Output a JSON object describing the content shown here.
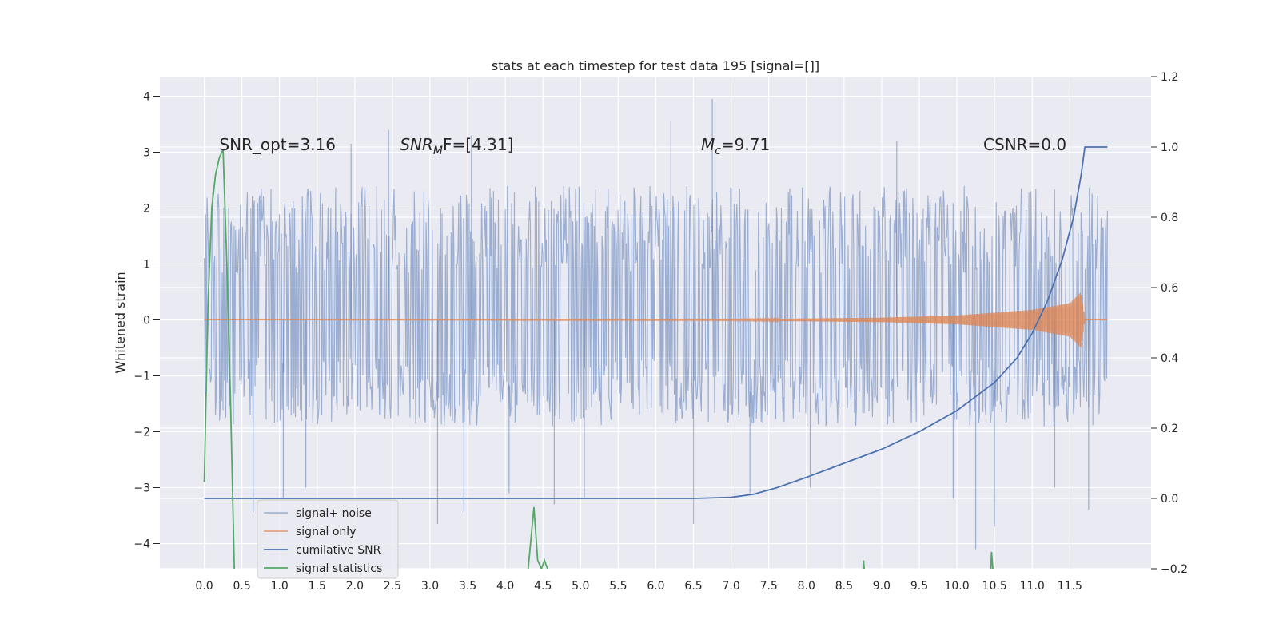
{
  "chart_data": {
    "type": "line",
    "title": "stats at each timestep for test data 195 [signal=[]]",
    "ylabel": "Whitened strain",
    "xlabel": "",
    "xlim": [
      -0.59,
      12.58
    ],
    "ylim": [
      -4.45,
      4.35
    ],
    "ylim_right": [
      -0.2,
      1.2
    ],
    "x_ticks": [
      0.0,
      0.5,
      1.0,
      1.5,
      2.0,
      2.5,
      3.0,
      3.5,
      4.0,
      4.5,
      5.0,
      5.5,
      6.0,
      6.5,
      7.0,
      7.5,
      8.0,
      8.5,
      9.0,
      9.5,
      10.0,
      10.5,
      11.0,
      11.5
    ],
    "x_tick_labels": [
      "0.0",
      "0.5",
      "1.0",
      "1.5",
      "2.0",
      "2.5",
      "3.0",
      "3.5",
      "4.0",
      "4.5",
      "5.0",
      "5.5",
      "6.0",
      "6.5",
      "7.0",
      "7.5",
      "8.0",
      "8.5",
      "9.0",
      "9.5",
      "10.0",
      "10.5",
      "11.0",
      "11.5"
    ],
    "y_ticks": [
      -4,
      -3,
      -2,
      -1,
      0,
      1,
      2,
      3,
      4
    ],
    "y_tick_labels": [
      "−4",
      "−3",
      "−2",
      "−1",
      "0",
      "1",
      "2",
      "3",
      "4"
    ],
    "y_right_ticks": [
      -0.2,
      0.0,
      0.2,
      0.4,
      0.6,
      0.8,
      1.0,
      1.2
    ],
    "y_right_tick_labels": [
      "−0.2",
      "0.0",
      "0.2",
      "0.4",
      "0.6",
      "0.8",
      "1.0",
      "1.2"
    ],
    "grid": true,
    "legend_position": "lower-left",
    "annotations": [
      {
        "text": "SNR_opt=3.16",
        "x": 0.2,
        "y": 3.15
      },
      {
        "text_main": "SNR",
        "text_sub": "M",
        "text_rest": "F=[4.31]",
        "x": 2.6,
        "y": 3.15
      },
      {
        "text_main": "M",
        "text_sub": "c",
        "text_rest": "=9.71",
        "x": 6.6,
        "y": 3.15
      },
      {
        "text": "CSNR=0.0",
        "x": 10.35,
        "y": 3.15
      }
    ],
    "series": [
      {
        "name": "signal+ noise",
        "color": "#4c72b0",
        "opacity": 0.5,
        "axis": "left",
        "x_range": [
          0.0,
          12.0
        ],
        "envelope_typical": [
          -1.9,
          2.4
        ],
        "spikes": [
          {
            "x": 0.65,
            "y": -3.45
          },
          {
            "x": 1.05,
            "y": -3.2
          },
          {
            "x": 1.35,
            "y": -3.0
          },
          {
            "x": 1.95,
            "y": 3.15
          },
          {
            "x": 2.45,
            "y": 3.4
          },
          {
            "x": 3.1,
            "y": -3.65
          },
          {
            "x": 3.45,
            "y": -3.45
          },
          {
            "x": 3.55,
            "y": 3.3
          },
          {
            "x": 4.05,
            "y": -3.1
          },
          {
            "x": 4.65,
            "y": -3.3
          },
          {
            "x": 5.05,
            "y": -3.2
          },
          {
            "x": 6.2,
            "y": 3.55
          },
          {
            "x": 6.5,
            "y": -3.65
          },
          {
            "x": 6.75,
            "y": 3.95
          },
          {
            "x": 7.25,
            "y": -3.1
          },
          {
            "x": 8.05,
            "y": -3.0
          },
          {
            "x": 9.2,
            "y": 3.2
          },
          {
            "x": 9.95,
            "y": -3.2
          },
          {
            "x": 10.25,
            "y": -4.1
          },
          {
            "x": 10.5,
            "y": -3.7
          },
          {
            "x": 11.3,
            "y": -3.0
          },
          {
            "x": 11.75,
            "y": -3.4
          }
        ]
      },
      {
        "name": "signal only",
        "color": "#dd8452",
        "axis": "left",
        "x_range": [
          0.0,
          12.0
        ],
        "amplitude_envelope": [
          [
            0.0,
            0.0
          ],
          [
            7.0,
            0.01
          ],
          [
            9.0,
            0.04
          ],
          [
            10.0,
            0.08
          ],
          [
            11.0,
            0.18
          ],
          [
            11.5,
            0.3
          ],
          [
            11.65,
            0.5
          ],
          [
            11.7,
            0.0
          ],
          [
            12.0,
            0.0
          ]
        ]
      },
      {
        "name": "cumilative SNR",
        "color": "#4c72b0",
        "axis": "right",
        "x": [
          0.0,
          6.5,
          7.0,
          7.3,
          7.6,
          8.0,
          8.5,
          9.0,
          9.5,
          10.0,
          10.5,
          10.8,
          11.0,
          11.2,
          11.4,
          11.55,
          11.65,
          11.7,
          12.0
        ],
        "y": [
          0.0,
          0.0,
          0.003,
          0.012,
          0.03,
          0.06,
          0.1,
          0.14,
          0.19,
          0.25,
          0.33,
          0.4,
          0.47,
          0.56,
          0.68,
          0.8,
          0.92,
          1.0,
          1.0
        ]
      },
      {
        "name": "signal statistics",
        "color": "#55a868",
        "axis": "left",
        "segments": [
          {
            "x": [
              0.0,
              0.05,
              0.1,
              0.15,
              0.2,
              0.25,
              0.3,
              0.35,
              0.4
            ],
            "y": [
              -2.9,
              0.3,
              2.0,
              2.6,
              2.9,
              3.05,
              1.0,
              -1.5,
              -4.5
            ]
          },
          {
            "x": [
              4.3,
              4.38,
              4.43,
              4.48,
              4.52,
              4.56,
              4.6
            ],
            "y": [
              -4.5,
              -3.35,
              -4.3,
              -4.45,
              -4.3,
              -4.45,
              -4.5
            ]
          },
          {
            "x": [
              8.75,
              8.76,
              8.77
            ],
            "y": [
              -4.5,
              -4.3,
              -4.5
            ]
          },
          {
            "x": [
              10.45,
              10.46,
              10.48
            ],
            "y": [
              -4.5,
              -4.15,
              -4.5
            ]
          }
        ]
      }
    ]
  }
}
